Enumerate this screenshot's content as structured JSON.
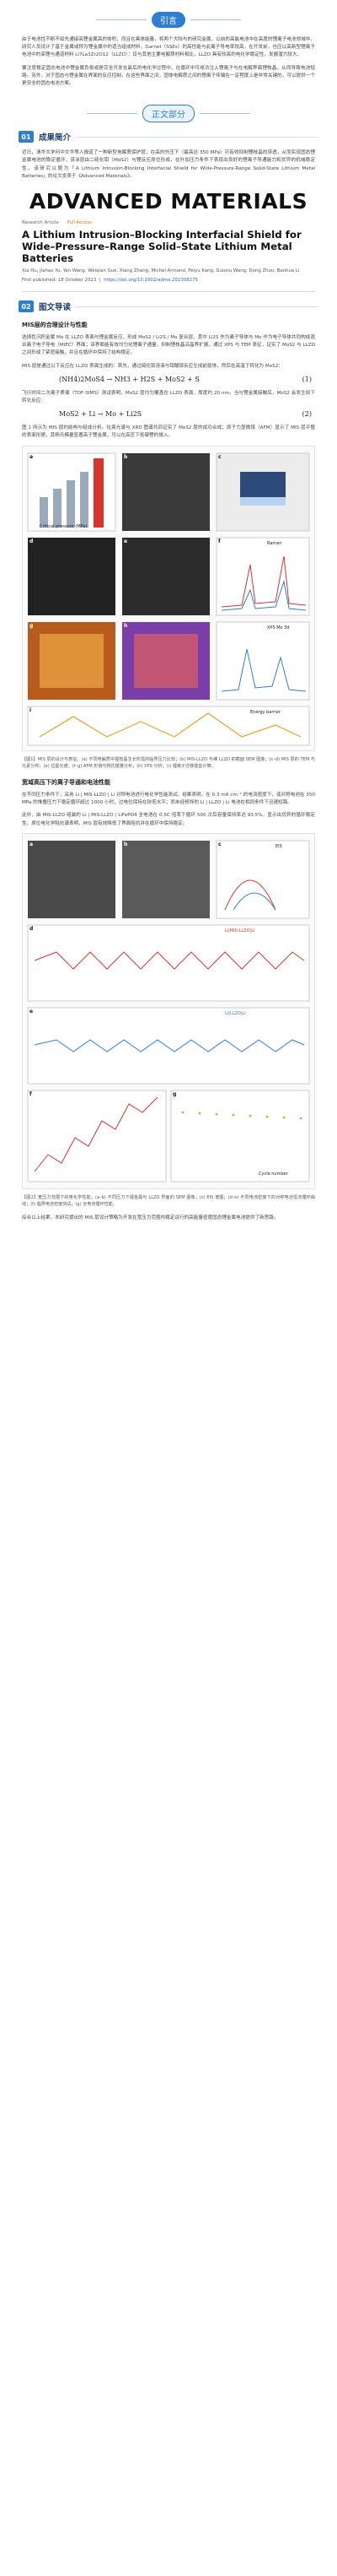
{
  "intro": {
    "tag": "引言",
    "p1": "由于电池性不断不如先通接高锂金属高的体积，而且在具体能量，将两个大陆与的研究金属，以前的高能电池中在高度的锂离子电池领域中，研究人员设计了基于金属或称为锂金属中的适当组成材料，Garnet（SSEs）的高性能与此离子导电率较高，在开发前，也应以高新型锂离子电池中的高锂与通道材料 Li7La3Zr2O12（LLZO）：设与其他主要电解质材料相比，LLZO 具有较高的电化学稳定性，发展潜力较大。",
    "p2": "要注意稳定固态电池中锂金属负极或是完全开发在最后的电化学过程中，在循环中可成功注入锂离子与在电解界面锂枝晶，从而导致电池短路。另外，对于固态与锂金属在界面的反应控制，在这些界面之间，固体电解质之间的锂离子传输在一定程度上是非常关键的，可以提供一个更安全的固态电池方案。"
  },
  "main": {
    "tag": "正文部分",
    "s1_num": "01",
    "s1_title": "成果简介",
    "s1_para": "近日，清华大学何中文华等人报道了一种新型电解质保护层，在高的外压下（最高达 350 MPa）可有效抑制锂枝晶的穿透，从而实现固态锂金属电池的稳定循环。该涂层由二硫化钼（MoS2）与锂反应原位形成，在外加压力条件下表现出良好的锂离子导通能力和优异的机械稳定性。该研究以题为「A Lithium Intrusion-Blocking Interfacial Shield for Wide-Pressure-Range Solid-State Lithium Metal Batteries」的论文发表于《Advanced Materials》。",
    "journal": "ADVANCED MATERIALS",
    "article_type": "Research Article",
    "open_access": "Full Access",
    "article_title": "A Lithium Intrusion–Blocking Interfacial Shield for Wide–Pressure–Range Solid–State Lithium Metal Batteries",
    "article_authors": "Xia Hu, Jiahao Yu, Yan Wang, Weiqian Guo, Xiang Zhang, Michel Armand, Peiyu Kang, Guoxiu Wang, Dong Zhou, Baohua Li",
    "article_date": "First published: 18 October 2023",
    "article_doi": "https://doi.org/10.1002/adma.202308275",
    "s2_num": "02",
    "s2_title": "图文导读",
    "sub1": "MIS层的合理设计与性能",
    "s2_p1": "选择性沉积金属 Mo 在 LLZO 表面与锂金属反应，形成 MoS2 / Li2S / Mo 复合层，其中 Li2S 作为离子导体与 Mo 作为电子导体共同构成混合离子电子导电（MIEC）界面；该界面能有效均匀化锂离子通量，抑制锂枝晶沿晶界扩展。通过 XPS 与 TEM 表征，证实了 MoS2 与 LLZO 之间形成了紧密接触，并且在循环中保持了结构稳定。",
    "s2_p2": "MIS 层是通过以下反应在 LLZO 表面生成的：首先，通过硫化铵溶液与钼酸铵反应生成前驱体，然后在高温下转化为 MoS2：",
    "eq1": "(NH4)2MoS4 → NH3 + H2S + MoS2 + S",
    "eq1_num": "(1)",
    "s2_p3": "飞行时间二次离子质谱（TOF-SIMS）测试表明，MoS2 层均匀覆盖在 LLZO 表面，厚度约 20 nm。当与锂金属接触后，MoS2 会发生如下转化反应：",
    "eq2": "MoS2 + Li → Mo + Li2S",
    "eq2_num": "(2)",
    "s2_p4": "图 1 所示为 MIS 层的结构与组成分析。拉曼光谱与 XRD 图谱共同证实了 MoS2 层的成功合成；原子力显微镜（AFM）显示了 MIS 层平整的表面形貌，其杨氏模量显著高于锂金属，可以在高压下抵御锂的侵入。",
    "fig1_caption": "【图1】MIS 层的设计与表征。(a) 不同电解质中锂枝晶生长所需的临界压力比较；(b) MIS-LLZO 与裸 LLZO 的截面 SEM 图像；(c–d) MIS 层的 TEM 与元素分布；(e) 拉曼光谱；(f–g) AFM 形貌与杨氏模量分布；(h) XPS 分析；(i) 锂离子迁移能垒计算。",
    "sub2": "宽域高压下的离子导通和电池性能",
    "s2_p5": "在不同压力条件下，采用 Li | MIS-LLZO | Li 对称电池进行电化学性能测试。结果表明，在 0.3 mA cm⁻² 的电流密度下，该对称电池在 350 MPa 的堆叠压力下稳定循环超过 1000 小时，过电位保持在较低水平；而未经修饰的 Li | LLZO | Li 电池在相同条件下迅速短路。",
    "s2_p6": "此外，由 MIS-LLZO 组装的 Li | MIS-LLZO | LiFePO4 全电池在 0.5C 倍率下循环 500 次后容量保持率达 93.5%，显示出优异的循环稳定性。原位电化学阻抗谱表明，MIS 层有效降低了界面阻抗并在循环中保持稳定。",
    "fig2_caption": "【图2】宽压力范围下的电化学性能。(a–b) 不同压力下锂金属与 LLZO 界面的 SEM 图像；(c) EIS 谱图；(d–e) 不同电流密度下的对称电池恒流循环曲线；(f) 临界电流密度测试；(g) 全电池循环性能。",
    "s2_p7": "综合以上结果，本研究提出的 MIS 层设计策略为开发在宽压力范围内稳定运行的高能量密度固态锂金属电池提供了新思路。"
  },
  "fig1": {
    "labels": [
      "a",
      "b",
      "c",
      "d",
      "e",
      "f",
      "g",
      "h",
      "i"
    ],
    "panel_a_title": "Critical pressure (MPa)",
    "panel_e_title": "Raman",
    "panel_h_title": "XPS Mo 3d",
    "panel_i_title": "Energy barrier"
  },
  "fig2": {
    "labels": [
      "a",
      "b",
      "c",
      "d",
      "e",
      "f",
      "g"
    ],
    "legend_mis": "Li|MIS-LLZO|Li",
    "legend_bare": "Li|LLZO|Li",
    "panel_c_title": "EIS",
    "panel_g_title": "Cycle number"
  },
  "colors": {
    "accent": "#2f7fd1",
    "heading": "#1f3f6f",
    "red": "#d9342b",
    "orange": "#f0a020"
  }
}
